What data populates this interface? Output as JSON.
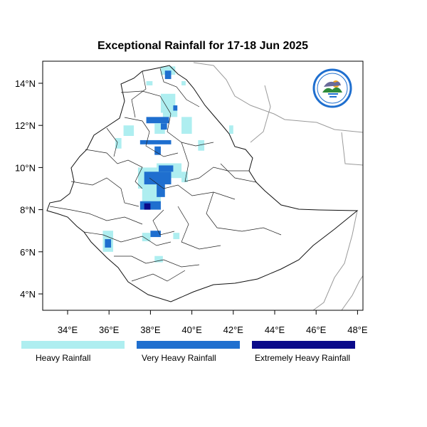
{
  "title": "Exceptional Rainfall for 17-18 Jun 2025",
  "axes": {
    "lon_ticks": [
      "34°E",
      "36°E",
      "38°E",
      "40°E",
      "42°E",
      "44°E",
      "46°E",
      "48°E"
    ],
    "lat_ticks": [
      "14°N",
      "12°N",
      "10°N",
      "8°N",
      "6°N",
      "4°N"
    ]
  },
  "legend": [
    {
      "label": "Heavy Rainfall",
      "color": "#aeeef0"
    },
    {
      "label": "Very Heavy Rainfall",
      "color": "#1f6fcf"
    },
    {
      "label": "Extremely Heavy Rainfall",
      "color": "#0a0a8a"
    }
  ],
  "logo_icon": "meteorology-institute-logo-icon",
  "chart_data": {
    "type": "heatmap",
    "title": "Exceptional Rainfall for 17-18 Jun 2025",
    "lon_range": [
      32.8,
      48.2
    ],
    "lat_range": [
      3.2,
      15.0
    ],
    "categories": [
      "Heavy Rainfall",
      "Very Heavy Rainfall",
      "Extremely Heavy Rainfall"
    ],
    "cells": [
      {
        "lon": 38.5,
        "lat": 14.4,
        "lon2": 39.2,
        "lat2": 14.8,
        "class": "Heavy Rainfall"
      },
      {
        "lon": 38.7,
        "lat": 14.2,
        "lon2": 39.0,
        "lat2": 14.6,
        "class": "Very Heavy Rainfall"
      },
      {
        "lon": 37.8,
        "lat": 13.9,
        "lon2": 38.1,
        "lat2": 14.1,
        "class": "Heavy Rainfall"
      },
      {
        "lon": 39.5,
        "lat": 13.9,
        "lon2": 39.7,
        "lat2": 14.1,
        "class": "Heavy Rainfall"
      },
      {
        "lon": 38.5,
        "lat": 12.6,
        "lon2": 39.2,
        "lat2": 13.5,
        "class": "Heavy Rainfall"
      },
      {
        "lon": 38.6,
        "lat": 12.4,
        "lon2": 39.3,
        "lat2": 12.7,
        "class": "Heavy Rainfall"
      },
      {
        "lon": 39.1,
        "lat": 12.7,
        "lon2": 39.3,
        "lat2": 12.95,
        "class": "Very Heavy Rainfall"
      },
      {
        "lon": 37.8,
        "lat": 12.1,
        "lon2": 38.9,
        "lat2": 12.4,
        "class": "Very Heavy Rainfall"
      },
      {
        "lon": 38.2,
        "lat": 11.6,
        "lon2": 38.7,
        "lat2": 12.1,
        "class": "Heavy Rainfall"
      },
      {
        "lon": 38.5,
        "lat": 11.8,
        "lon2": 38.8,
        "lat2": 12.1,
        "class": "Very Heavy Rainfall"
      },
      {
        "lon": 36.7,
        "lat": 11.5,
        "lon2": 37.2,
        "lat2": 12.0,
        "class": "Heavy Rainfall"
      },
      {
        "lon": 36.3,
        "lat": 10.9,
        "lon2": 36.6,
        "lat2": 11.4,
        "class": "Heavy Rainfall"
      },
      {
        "lon": 37.5,
        "lat": 11.1,
        "lon2": 39.0,
        "lat2": 11.3,
        "class": "Very Heavy Rainfall"
      },
      {
        "lon": 38.2,
        "lat": 10.6,
        "lon2": 38.5,
        "lat2": 11.0,
        "class": "Very Heavy Rainfall"
      },
      {
        "lon": 39.5,
        "lat": 11.6,
        "lon2": 40.0,
        "lat2": 12.4,
        "class": "Heavy Rainfall"
      },
      {
        "lon": 40.3,
        "lat": 10.8,
        "lon2": 40.6,
        "lat2": 11.3,
        "class": "Heavy Rainfall"
      },
      {
        "lon": 41.8,
        "lat": 11.6,
        "lon2": 42.0,
        "lat2": 12.0,
        "class": "Heavy Rainfall"
      },
      {
        "lon": 37.4,
        "lat": 9.0,
        "lon2": 38.4,
        "lat2": 10.0,
        "class": "Heavy Rainfall"
      },
      {
        "lon": 38.3,
        "lat": 9.5,
        "lon2": 39.5,
        "lat2": 10.2,
        "class": "Heavy Rainfall"
      },
      {
        "lon": 37.7,
        "lat": 9.2,
        "lon2": 39.0,
        "lat2": 9.8,
        "class": "Very Heavy Rainfall"
      },
      {
        "lon": 38.4,
        "lat": 9.8,
        "lon2": 39.1,
        "lat2": 10.1,
        "class": "Very Heavy Rainfall"
      },
      {
        "lon": 37.6,
        "lat": 8.3,
        "lon2": 38.5,
        "lat2": 9.0,
        "class": "Heavy Rainfall"
      },
      {
        "lon": 38.3,
        "lat": 8.6,
        "lon2": 38.7,
        "lat2": 9.3,
        "class": "Very Heavy Rainfall"
      },
      {
        "lon": 37.5,
        "lat": 8.0,
        "lon2": 38.5,
        "lat2": 8.4,
        "class": "Very Heavy Rainfall"
      },
      {
        "lon": 37.7,
        "lat": 8.0,
        "lon2": 38.0,
        "lat2": 8.3,
        "class": "Extremely Heavy Rainfall"
      },
      {
        "lon": 39.5,
        "lat": 9.3,
        "lon2": 39.8,
        "lat2": 9.8,
        "class": "Heavy Rainfall"
      },
      {
        "lon": 35.7,
        "lat": 6.0,
        "lon2": 36.2,
        "lat2": 7.0,
        "class": "Heavy Rainfall"
      },
      {
        "lon": 35.8,
        "lat": 6.2,
        "lon2": 36.1,
        "lat2": 6.6,
        "class": "Very Heavy Rainfall"
      },
      {
        "lon": 38.0,
        "lat": 6.7,
        "lon2": 38.5,
        "lat2": 7.0,
        "class": "Very Heavy Rainfall"
      },
      {
        "lon": 37.6,
        "lat": 6.5,
        "lon2": 38.0,
        "lat2": 6.9,
        "class": "Heavy Rainfall"
      },
      {
        "lon": 38.2,
        "lat": 5.5,
        "lon2": 38.6,
        "lat2": 5.8,
        "class": "Heavy Rainfall"
      },
      {
        "lon": 39.1,
        "lat": 6.6,
        "lon2": 39.4,
        "lat2": 6.9,
        "class": "Heavy Rainfall"
      }
    ]
  }
}
